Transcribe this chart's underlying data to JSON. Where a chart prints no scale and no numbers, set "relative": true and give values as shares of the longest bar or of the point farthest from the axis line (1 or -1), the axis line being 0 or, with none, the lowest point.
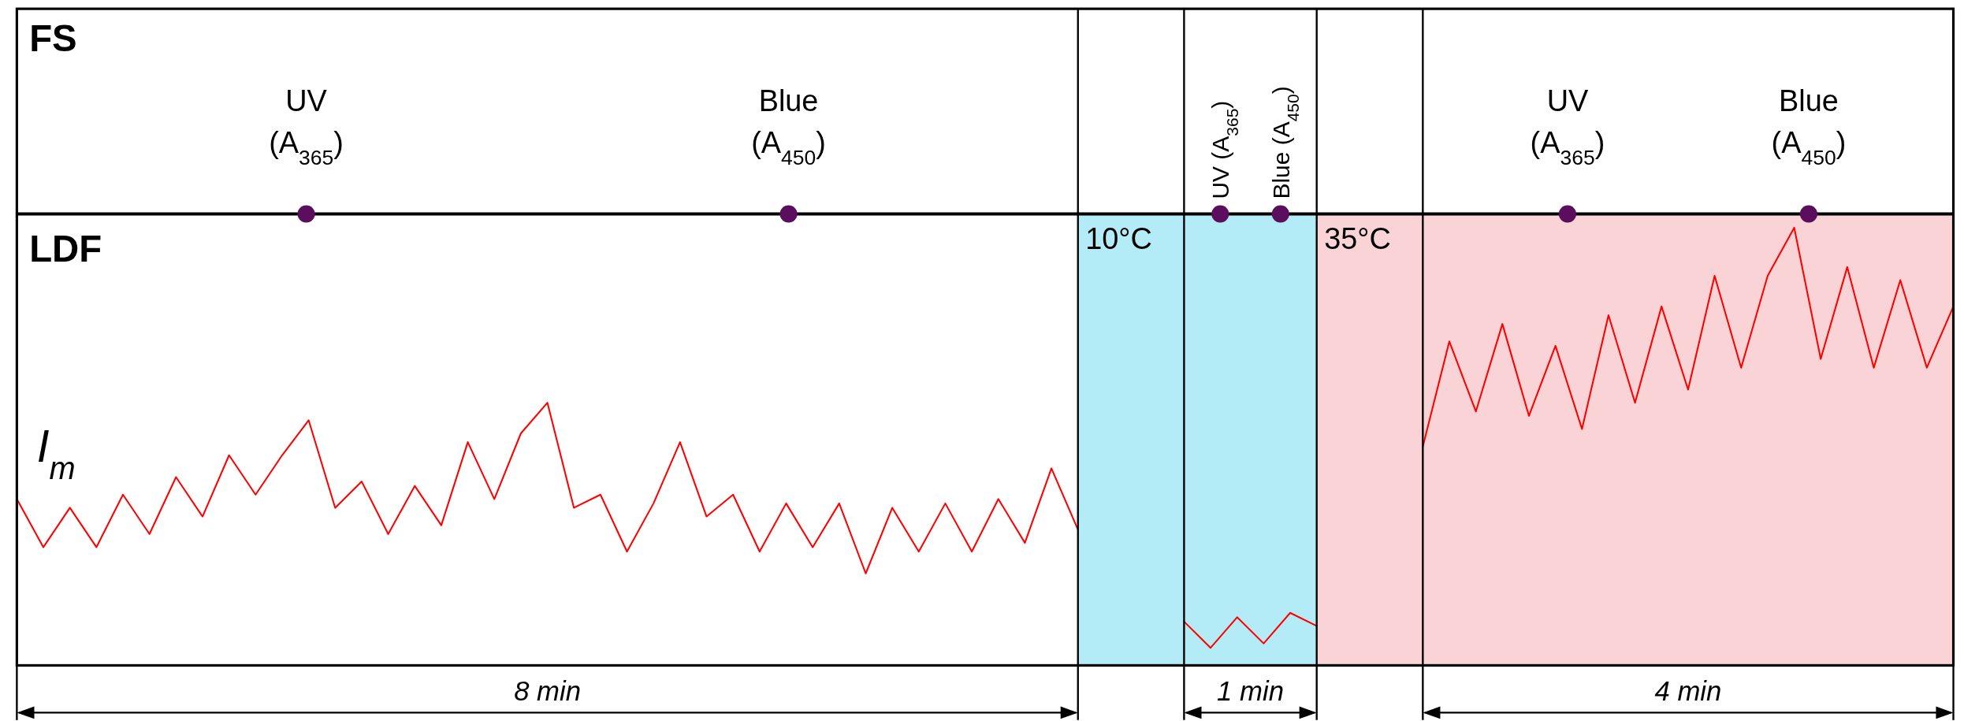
{
  "chart_data": {
    "type": "line",
    "relative": true,
    "grid": "x",
    "ylabel": "I$_{m}$",
    "categories": [
      null,
      null,
      null,
      null,
      null,
      null,
      null,
      null,
      null,
      null,
      null,
      null,
      null,
      null,
      null,
      null,
      null,
      null,
      null,
      null,
      null,
      null,
      null,
      null,
      null,
      null,
      null,
      null,
      null,
      null,
      null,
      null,
      null,
      null,
      null,
      null,
      null,
      null,
      null,
      null,
      null,
      null,
      null,
      null,
      null,
      null,
      null,
      null,
      null,
      null,
      null,
      null,
      null,
      null,
      null,
      null,
      null,
      null,
      null,
      null,
      null,
      null,
      null,
      null,
      null,
      null,
      null,
      null,
      null,
      null,
      null,
      null,
      null,
      null
    ],
    "series": [
      {
        "color": "#ff0000",
        "values": [
          0.38,
          0.27,
          0.36,
          0.27,
          0.39,
          0.3,
          0.43,
          0.34,
          0.48,
          0.39,
          0.48,
          0.56,
          0.36,
          0.42,
          0.3,
          0.41,
          0.32,
          0.51,
          0.38,
          0.53,
          0.6,
          0.36,
          0.39,
          0.26,
          0.37,
          0.51,
          0.34,
          0.39,
          0.26,
          0.37,
          0.27,
          0.37,
          0.21,
          0.36,
          0.26,
          0.37,
          0.26,
          0.38,
          0.28,
          0.45,
          0.31,
          null,
          null,
          null,
          null,
          null,
          null,
          null,
          null,
          null,
          null,
          null,
          null,
          null,
          null,
          null,
          null,
          null,
          null,
          null,
          null,
          null,
          null,
          null,
          null,
          null,
          null,
          null,
          null,
          null,
          null,
          null,
          null,
          null
        ]
      },
      {
        "color": "#ff0000",
        "values": [
          null,
          null,
          null,
          null,
          null,
          null,
          null,
          null,
          null,
          null,
          null,
          null,
          null,
          null,
          null,
          null,
          null,
          null,
          null,
          null,
          null,
          null,
          null,
          null,
          null,
          null,
          null,
          null,
          null,
          null,
          null,
          null,
          null,
          null,
          null,
          null,
          null,
          null,
          null,
          null,
          null,
          null,
          null,
          null,
          0.1,
          0.04,
          0.11,
          0.05,
          0.12,
          0.09,
          null,
          null,
          null,
          null,
          null,
          null,
          null,
          null,
          null,
          null,
          null,
          null,
          null,
          null,
          null,
          null,
          null,
          null,
          null,
          null,
          null,
          null,
          null,
          null
        ]
      },
      {
        "color": "#ff0000",
        "values": [
          null,
          null,
          null,
          null,
          null,
          null,
          null,
          null,
          null,
          null,
          null,
          null,
          null,
          null,
          null,
          null,
          null,
          null,
          null,
          null,
          null,
          null,
          null,
          null,
          null,
          null,
          null,
          null,
          null,
          null,
          null,
          null,
          null,
          null,
          null,
          null,
          null,
          null,
          null,
          null,
          null,
          null,
          null,
          null,
          null,
          null,
          null,
          null,
          null,
          null,
          null,
          null,
          null,
          0.5,
          0.74,
          0.58,
          0.78,
          0.57,
          0.73,
          0.54,
          0.8,
          0.6,
          0.82,
          0.63,
          0.89,
          0.68,
          0.89,
          1.0,
          0.7,
          0.91,
          0.68,
          0.88,
          0.68,
          0.82
        ]
      }
    ],
    "annotations": [
      "FS",
      "LDF",
      "8 min",
      "1 min",
      "4 min",
      "10°C",
      "35°C",
      "UV (A$_{365}$)",
      "Blue (A$_{450}$)",
      "UV (A$_{365}$)",
      "Blue (A$_{450}$)",
      "UV (A$_{365}$)",
      "Blue (A$_{450}$)"
    ]
  }
}
